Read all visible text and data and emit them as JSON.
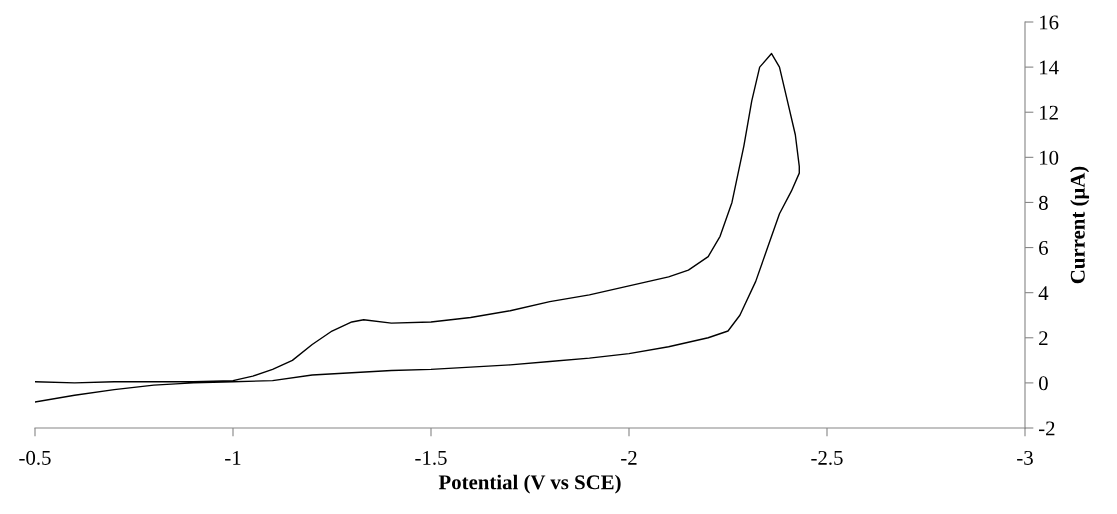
{
  "chart_data": {
    "type": "line",
    "xlabel": "Potential (V vs SCE)",
    "ylabel": "Current (μA)",
    "xlim": [
      -0.5,
      -3
    ],
    "xticks": [
      -0.5,
      -1,
      -1.5,
      -2,
      -2.5,
      -3
    ],
    "ylim": [
      -2,
      16
    ],
    "yticks": [
      -2,
      0,
      2,
      4,
      6,
      8,
      10,
      12,
      14,
      16
    ],
    "grid": false,
    "legend": false,
    "marker": "none",
    "line_style": "solid",
    "series": [
      {
        "color": "#000000",
        "x": [
          -0.5,
          -0.6,
          -0.7,
          -0.8,
          -0.9,
          -1.0,
          -1.05,
          -1.1,
          -1.15,
          -1.2,
          -1.25,
          -1.3,
          -1.33,
          -1.4,
          -1.5,
          -1.6,
          -1.7,
          -1.8,
          -1.9,
          -2.0,
          -2.1,
          -2.15,
          -2.2,
          -2.23,
          -2.26,
          -2.29,
          -2.31,
          -2.33,
          -2.36,
          -2.38,
          -2.4,
          -2.42,
          -2.43,
          -2.43,
          -2.41,
          -2.38,
          -2.35,
          -2.32,
          -2.28,
          -2.25,
          -2.2,
          -2.1,
          -2.0,
          -1.9,
          -1.8,
          -1.7,
          -1.6,
          -1.5,
          -1.4,
          -1.3,
          -1.2,
          -1.1,
          -1.0,
          -0.9,
          -0.8,
          -0.7,
          -0.6,
          -0.5
        ],
        "values": [
          0.05,
          0.0,
          0.05,
          0.05,
          0.05,
          0.1,
          0.3,
          0.6,
          1.0,
          1.7,
          2.3,
          2.7,
          2.8,
          2.65,
          2.7,
          2.9,
          3.2,
          3.6,
          3.9,
          4.3,
          4.7,
          5.0,
          5.6,
          6.5,
          8.0,
          10.5,
          12.5,
          14.0,
          14.6,
          14.0,
          12.5,
          11.0,
          9.6,
          9.3,
          8.5,
          7.5,
          6.0,
          4.5,
          3.0,
          2.3,
          2.0,
          1.6,
          1.3,
          1.1,
          0.95,
          0.8,
          0.7,
          0.6,
          0.55,
          0.45,
          0.35,
          0.1,
          0.05,
          0.0,
          -0.1,
          -0.3,
          -0.55,
          -0.85
        ]
      }
    ]
  }
}
